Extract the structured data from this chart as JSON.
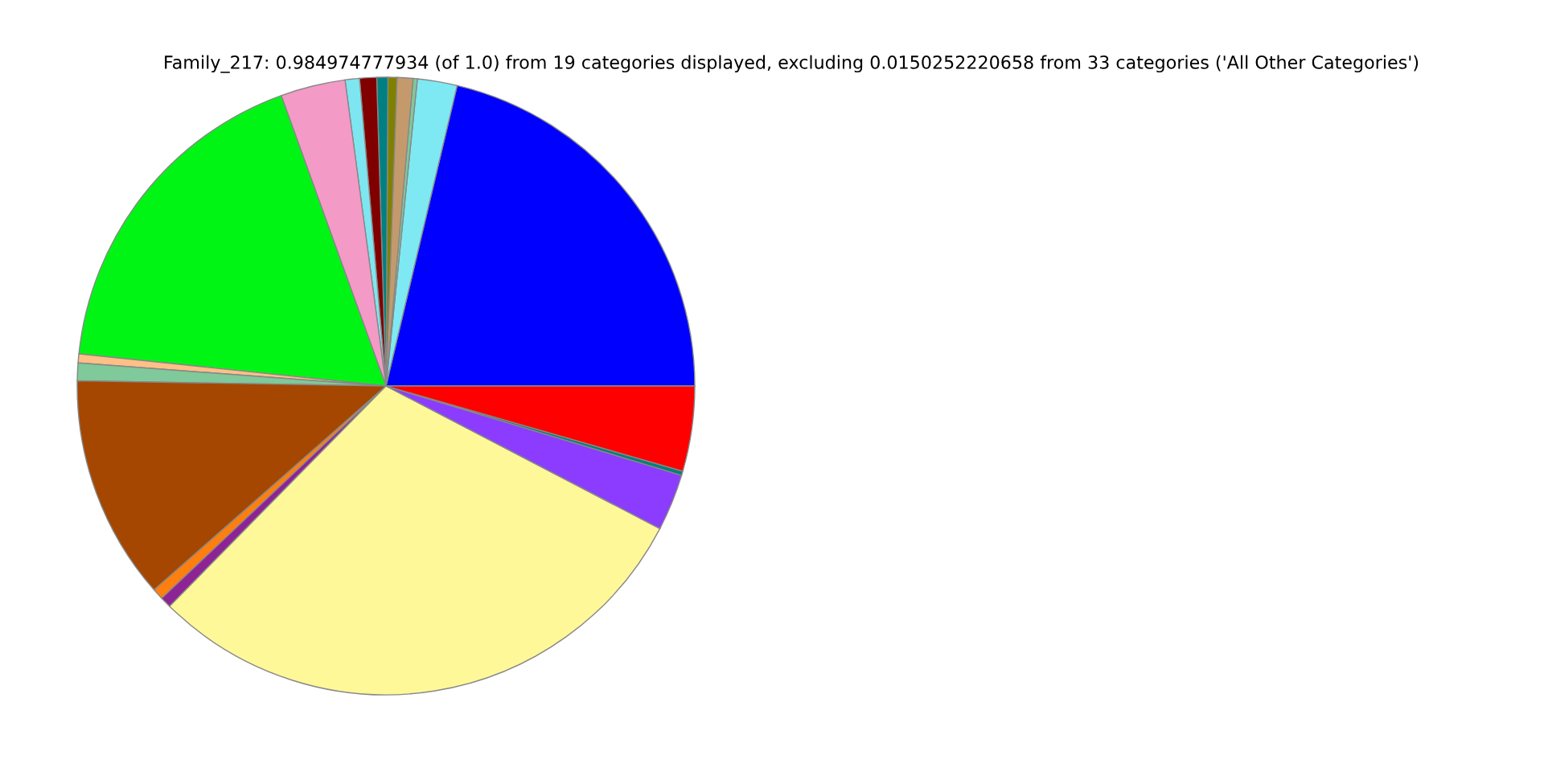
{
  "chart_data": {
    "type": "pie",
    "title": "Family_217: 0.984974777934 (of 1.0) from 19 categories displayed, excluding 0.0150252220658 from 33 categories ('All Other Categories')",
    "categories": [
      null,
      null,
      null,
      null,
      null,
      null,
      null,
      null,
      null,
      null,
      null,
      null,
      null,
      null,
      null,
      null,
      null,
      null,
      null
    ],
    "values": [
      21.3,
      2.08,
      0.22,
      0.83,
      0.47,
      0.58,
      0.89,
      0.75,
      3.39,
      17.83,
      0.47,
      0.92,
      11.75,
      0.58,
      0.58,
      29.72,
      2.97,
      0.22,
      4.45
    ],
    "colors": [
      "#0000ff",
      "#7ee9f2",
      "#7fc99a",
      "#c49a6c",
      "#808000",
      "#008080",
      "#800000",
      "#7ee6f0",
      "#f49ac6",
      "#00f514",
      "#fdc086",
      "#7fc99a",
      "#a54700",
      "#ff7f0e",
      "#8e2396",
      "#fff899",
      "#8b3cff",
      "#00807a",
      "#ff0000"
    ]
  }
}
